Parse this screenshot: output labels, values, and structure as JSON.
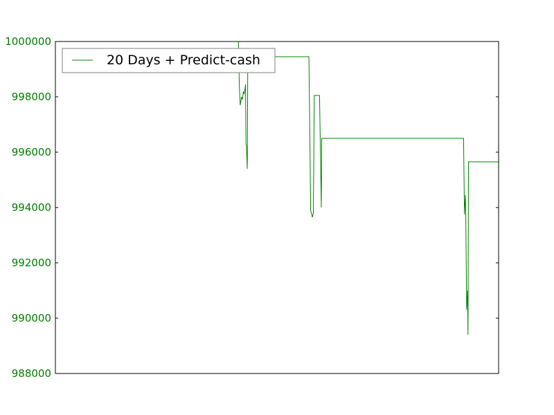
{
  "chart_data": {
    "type": "line",
    "title": "",
    "xlabel": "",
    "ylabel": "",
    "x_ticks_visible": false,
    "xlim": [
      0,
      100
    ],
    "ylim": [
      988000,
      1000000
    ],
    "yticks": [
      988000,
      990000,
      992000,
      994000,
      996000,
      998000,
      1000000
    ],
    "ytick_labels": [
      "988000",
      "990000",
      "992000",
      "994000",
      "996000",
      "998000",
      "1000000"
    ],
    "grid": false,
    "legend": {
      "placement": "top-left"
    },
    "colors": {
      "series": "#008000",
      "tick_label": "#008000",
      "axes": "#000000",
      "legend_border": "#7f7f7f"
    },
    "series": [
      {
        "name": "20 Days + Predict-cash",
        "points": [
          [
            41.3,
            1000000
          ],
          [
            41.5,
            998400
          ],
          [
            41.7,
            997700
          ],
          [
            42.0,
            998000
          ],
          [
            42.2,
            997900
          ],
          [
            42.4,
            998200
          ],
          [
            42.6,
            998100
          ],
          [
            42.8,
            998300
          ],
          [
            42.9,
            998450
          ],
          [
            43.0,
            996300
          ],
          [
            43.1,
            996250
          ],
          [
            43.3,
            995400
          ],
          [
            43.4,
            999450
          ],
          [
            57.2,
            999450
          ],
          [
            57.6,
            993900
          ],
          [
            58.0,
            993650
          ],
          [
            58.2,
            993800
          ],
          [
            58.4,
            998050
          ],
          [
            59.6,
            998050
          ],
          [
            60.0,
            994000
          ],
          [
            60.1,
            996500
          ],
          [
            92.1,
            996500
          ],
          [
            92.3,
            993750
          ],
          [
            92.5,
            994450
          ],
          [
            92.6,
            993700
          ],
          [
            92.8,
            990300
          ],
          [
            93.0,
            991000
          ],
          [
            93.1,
            989400
          ],
          [
            93.2,
            995650
          ],
          [
            100.0,
            995650
          ]
        ]
      }
    ]
  }
}
